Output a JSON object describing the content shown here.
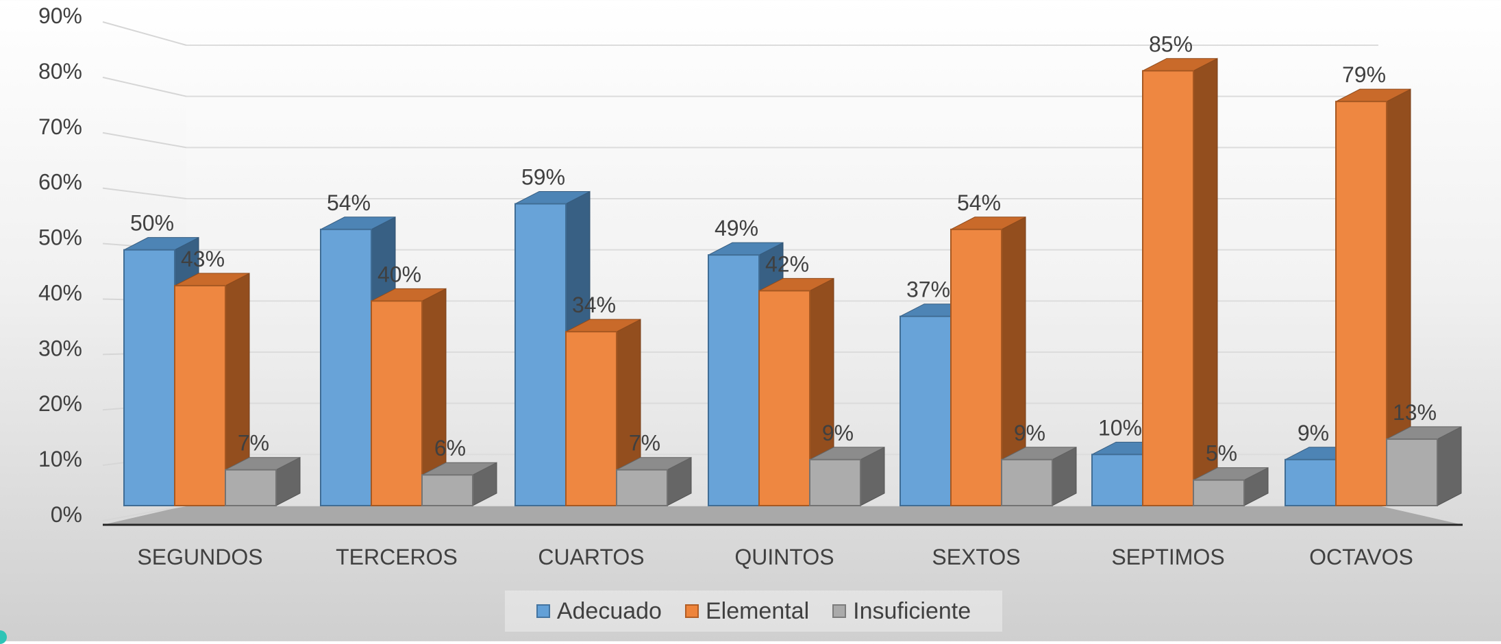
{
  "chart_data": {
    "type": "bar",
    "categories": [
      "SEGUNDOS",
      "TERCEROS",
      "CUARTOS",
      "QUINTOS",
      "SEXTOS",
      "SEPTIMOS",
      "OCTAVOS"
    ],
    "series": [
      {
        "name": "Adecuado",
        "values": [
          50,
          54,
          59,
          49,
          37,
          10,
          9
        ],
        "labels": [
          "50%",
          "54%",
          "59%",
          "49%",
          "37%",
          "10%",
          "9%"
        ],
        "color": "#5b9bd5"
      },
      {
        "name": "Elemental",
        "values": [
          43,
          40,
          34,
          42,
          54,
          85,
          79
        ],
        "labels": [
          "43%",
          "40%",
          "34%",
          "42%",
          "54%",
          "85%",
          "79%"
        ],
        "color": "#ed7d31"
      },
      {
        "name": "Insuficiente",
        "values": [
          7,
          6,
          7,
          9,
          9,
          5,
          13
        ],
        "labels": [
          "7%",
          "6%",
          "7%",
          "9%",
          "9%",
          "5%",
          "13%"
        ],
        "color": "#a5a5a5"
      }
    ],
    "ylim": [
      0,
      90
    ],
    "y_ticks": [
      "0%",
      "10%",
      "20%",
      "30%",
      "40%",
      "50%",
      "60%",
      "70%",
      "80%",
      "90%"
    ],
    "grid": true,
    "legend_position": "bottom",
    "style": "3d-clustered-column"
  }
}
